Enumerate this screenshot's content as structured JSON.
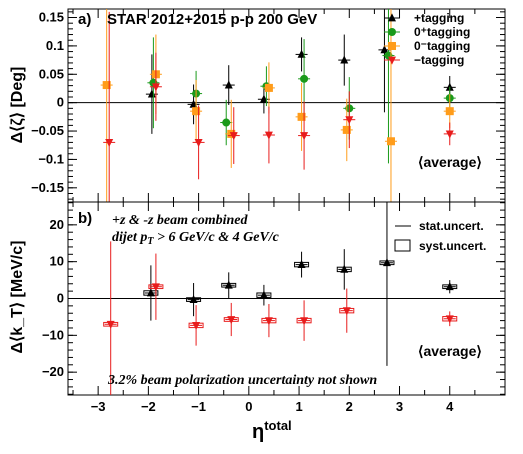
{
  "colors": {
    "plus": "#000000",
    "zero_plus": "#1a9a1a",
    "zero_minus": "#ff9c1a",
    "minus": "#e81c1c"
  },
  "chart_data": [
    {
      "panel": "a",
      "type": "scatter",
      "panel_label": "a)",
      "title": "STAR 2012+2015 p-p 200 GeV",
      "ylabel": "Δ⟨ζ⟩ [Deg]",
      "ylim": [
        -0.175,
        0.165
      ],
      "yticks": [
        -0.15,
        -0.1,
        -0.05,
        0,
        0.05,
        0.1,
        0.15
      ],
      "ytick_labels": [
        "−0.15",
        "−0.1",
        "−0.05",
        "0",
        "0.05",
        "0.1",
        "0.15"
      ],
      "legend_position": "top-right",
      "average_label": "⟨average⟩",
      "series": [
        {
          "name": "+tagging",
          "color_key": "plus",
          "marker": "triangle-up",
          "points": [
            {
              "x": -1.93,
              "y": 0.015,
              "err": 0.07
            },
            {
              "x": -1.1,
              "y": -0.003,
              "err": 0.035
            },
            {
              "x": -0.4,
              "y": 0.031,
              "err": 0.035
            },
            {
              "x": 0.3,
              "y": 0.006,
              "err": 0.025
            },
            {
              "x": 1.05,
              "y": 0.085,
              "err": 0.03
            },
            {
              "x": 1.9,
              "y": 0.075,
              "err": 0.045
            },
            {
              "x": 2.7,
              "y": 0.093,
              "err": 0.11
            },
            {
              "x": 4.0,
              "y": 0.027,
              "err": 0.02
            }
          ]
        },
        {
          "name": "0⁺tagging",
          "color_key": "zero_plus",
          "marker": "circle",
          "points": [
            {
              "x": -1.9,
              "y": 0.035,
              "err": 0.08
            },
            {
              "x": -1.05,
              "y": 0.016,
              "err": 0.04
            },
            {
              "x": -0.45,
              "y": -0.035,
              "err": 0.04
            },
            {
              "x": 0.35,
              "y": 0.029,
              "err": 0.035
            },
            {
              "x": 1.1,
              "y": 0.042,
              "err": 0.07
            },
            {
              "x": 2.0,
              "y": -0.01,
              "err": 0.055
            },
            {
              "x": 2.78,
              "y": 0.083,
              "err": 0.19
            },
            {
              "x": 4.0,
              "y": 0.008,
              "err": 0.02
            }
          ]
        },
        {
          "name": "0⁻tagging",
          "color_key": "zero_minus",
          "marker": "square",
          "points": [
            {
              "x": -2.83,
              "y": 0.031,
              "err": 0.3
            },
            {
              "x": -1.85,
              "y": 0.05,
              "err": 0.07
            },
            {
              "x": -1.05,
              "y": -0.015,
              "err": 0.055
            },
            {
              "x": -0.35,
              "y": -0.055,
              "err": 0.06
            },
            {
              "x": 0.4,
              "y": 0.026,
              "err": 0.045
            },
            {
              "x": 1.05,
              "y": -0.025,
              "err": 0.06
            },
            {
              "x": 1.95,
              "y": -0.048,
              "err": 0.055
            },
            {
              "x": 2.83,
              "y": -0.068,
              "err": 0.25
            },
            {
              "x": 4.0,
              "y": -0.015,
              "err": 0.03
            }
          ]
        },
        {
          "name": "−tagging",
          "color_key": "minus",
          "marker": "triangle-down",
          "points": [
            {
              "x": -2.78,
              "y": -0.07,
              "err": 0.23
            },
            {
              "x": -1.85,
              "y": 0.028,
              "err": 0.06
            },
            {
              "x": -1.0,
              "y": -0.07,
              "err": 0.065
            },
            {
              "x": -0.3,
              "y": -0.058,
              "err": 0.05
            },
            {
              "x": 0.4,
              "y": -0.057,
              "err": 0.05
            },
            {
              "x": 1.1,
              "y": -0.058,
              "err": 0.06
            },
            {
              "x": 2.0,
              "y": -0.03,
              "err": 0.05
            },
            {
              "x": 4.0,
              "y": -0.055,
              "err": 0.02
            }
          ]
        }
      ]
    },
    {
      "panel": "b",
      "type": "scatter",
      "panel_label": "b)",
      "ylabel": "Δ⟨k_T⟩ [MeV/c]",
      "xlabel": "η^total",
      "ylim": [
        -26.2,
        26.2
      ],
      "yticks": [
        -20,
        -10,
        0,
        10,
        20
      ],
      "ytick_labels": [
        "−20",
        "−10",
        "0",
        "10",
        "20"
      ],
      "xlim": [
        -3.6,
        5.1
      ],
      "xticks": [
        -3,
        -2,
        -1,
        0,
        1,
        2,
        3,
        4
      ],
      "xtick_labels": [
        "−3",
        "−2",
        "−1",
        "0",
        "1",
        "2",
        "3",
        "4"
      ],
      "annotation_line1": "+z & -z beam combined",
      "annotation_line2_pre": "dijet p",
      "annotation_line2_sub": "T",
      "annotation_line2_post": " > 6 GeV/c & 4 GeV/c",
      "footnote": "3.2% beam polarization uncertainty not shown",
      "legend_stat": "stat.uncert.",
      "legend_syst": "syst.uncert.",
      "average_label": "⟨average⟩",
      "series": [
        {
          "name": "+tagging",
          "color_key": "plus",
          "marker": "triangle-up",
          "points": [
            {
              "x": -1.95,
              "y": 1.5,
              "err": 7.5,
              "syst": 0.6
            },
            {
              "x": -1.1,
              "y": -0.3,
              "err": 4.5,
              "syst": 0.5
            },
            {
              "x": -0.4,
              "y": 3.6,
              "err": 3.5,
              "syst": 0.5
            },
            {
              "x": 0.3,
              "y": 0.9,
              "err": 2.8,
              "syst": 0.6
            },
            {
              "x": 1.05,
              "y": 9.2,
              "err": 3.5,
              "syst": 0.6
            },
            {
              "x": 1.9,
              "y": 7.9,
              "err": 5.5,
              "syst": 0.6
            },
            {
              "x": 2.75,
              "y": 9.7,
              "err": 28,
              "syst": 0.5
            },
            {
              "x": 4.0,
              "y": 3.2,
              "err": 1.8,
              "syst": 0.5
            }
          ]
        },
        {
          "name": "−tagging",
          "color_key": "minus",
          "marker": "triangle-down",
          "points": [
            {
              "x": -2.75,
              "y": -7.0,
              "err": 22.5,
              "syst": 0.5
            },
            {
              "x": -1.85,
              "y": 3.2,
              "err": 9,
              "syst": 0.5
            },
            {
              "x": -1.05,
              "y": -7.3,
              "err": 5.5,
              "syst": 0.6
            },
            {
              "x": -0.35,
              "y": -5.7,
              "err": 4.5,
              "syst": 0.5
            },
            {
              "x": 0.4,
              "y": -6.0,
              "err": 4.5,
              "syst": 0.6
            },
            {
              "x": 1.1,
              "y": -6.0,
              "err": 5.5,
              "syst": 0.6
            },
            {
              "x": 1.95,
              "y": -3.3,
              "err": 6,
              "syst": 0.6
            },
            {
              "x": 4.0,
              "y": -5.5,
              "err": 2.0,
              "syst": 0.6
            }
          ]
        }
      ]
    }
  ]
}
